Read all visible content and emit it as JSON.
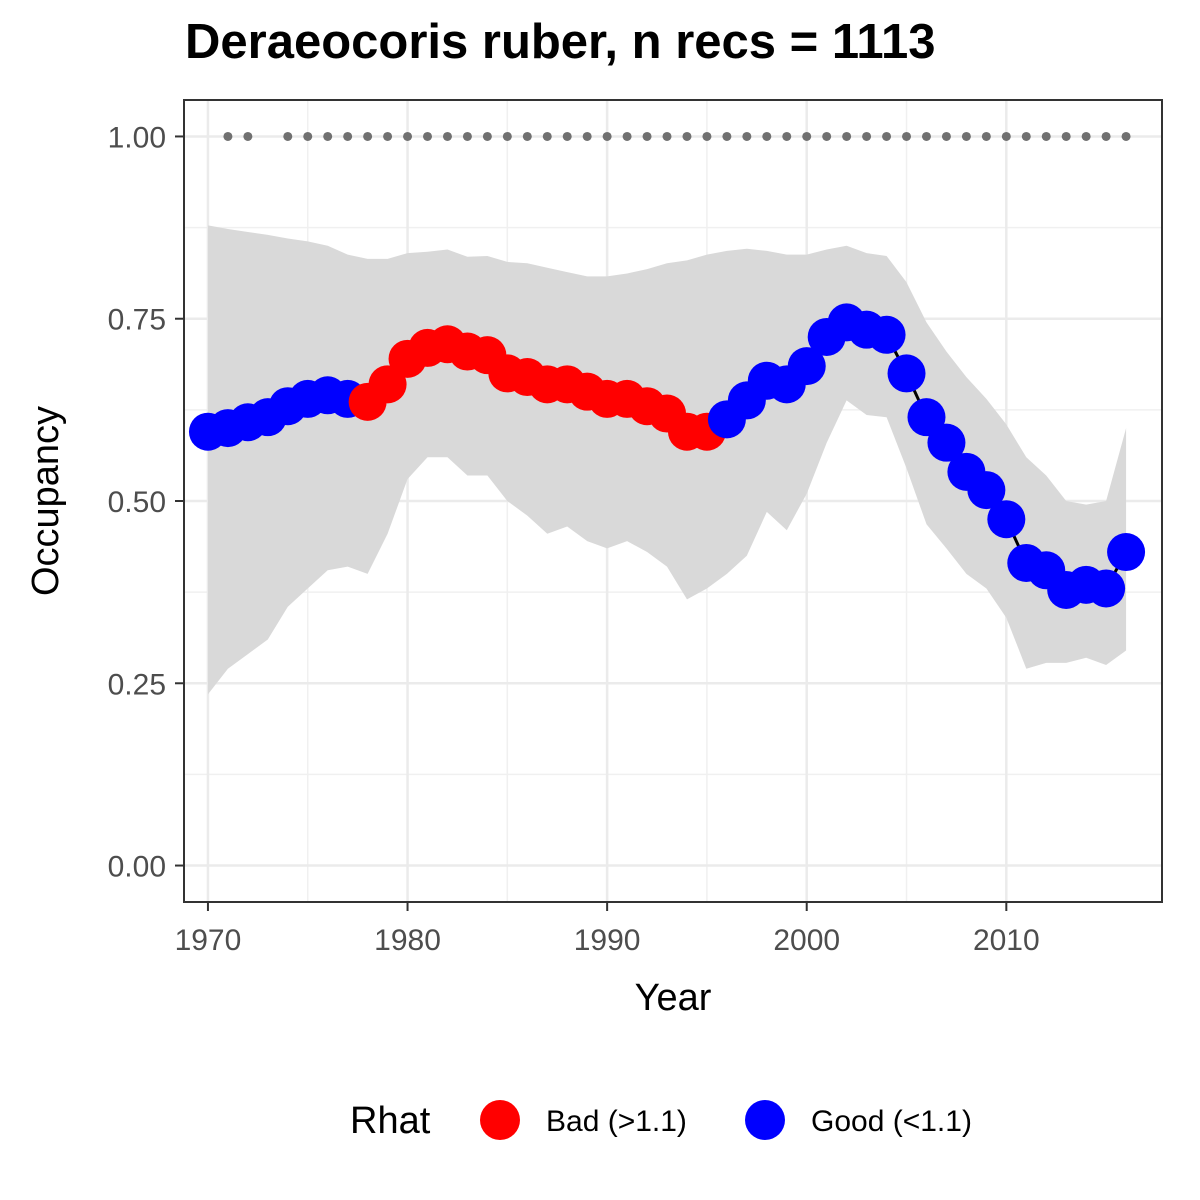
{
  "chart_data": {
    "type": "line",
    "title": "Deraeocoris ruber, n recs = 1113",
    "xlabel": "Year",
    "ylabel": "Occupancy",
    "xlim": [
      1968.8,
      2017.8
    ],
    "ylim": [
      -0.05,
      1.05
    ],
    "x_ticks": [
      "1970",
      "1980",
      "1990",
      "2000",
      "2010"
    ],
    "y_ticks": [
      "0.00",
      "0.25",
      "0.50",
      "0.75",
      "1.00"
    ],
    "grid": true,
    "legend": {
      "title": "Rhat",
      "position": "bottom",
      "entries": [
        {
          "label": "Bad (>1.1)",
          "color": "#ff0000"
        },
        {
          "label": "Good (<1.1)",
          "color": "#0000ff"
        }
      ]
    },
    "colors": {
      "bad": "#ff0000",
      "good": "#0000ff",
      "ribbon": "#d9d9d9",
      "line": "#000000",
      "dots": "#707070"
    },
    "series": [
      {
        "x": [
          1970,
          1971,
          1972,
          1973,
          1974,
          1975,
          1976,
          1977,
          1978,
          1979,
          1980,
          1981,
          1982,
          1983,
          1984,
          1985,
          1986,
          1987,
          1988,
          1989,
          1990,
          1991,
          1992,
          1993,
          1994,
          1995,
          1996,
          1997,
          1998,
          1999,
          2000,
          2001,
          2002,
          2003,
          2004,
          2005,
          2006,
          2007,
          2008,
          2009,
          2010,
          2011,
          2012,
          2013,
          2014,
          2015,
          2016
        ],
        "y": [
          0.595,
          0.6,
          0.608,
          0.615,
          0.63,
          0.64,
          0.645,
          0.64,
          0.636,
          0.66,
          0.695,
          0.71,
          0.715,
          0.705,
          0.7,
          0.675,
          0.67,
          0.66,
          0.66,
          0.65,
          0.64,
          0.64,
          0.63,
          0.62,
          0.595,
          0.595,
          0.612,
          0.638,
          0.665,
          0.66,
          0.685,
          0.725,
          0.745,
          0.735,
          0.728,
          0.675,
          0.615,
          0.58,
          0.54,
          0.515,
          0.475,
          0.415,
          0.405,
          0.378,
          0.385,
          0.38,
          0.43
        ],
        "rhat": [
          "Good",
          "Good",
          "Good",
          "Good",
          "Good",
          "Good",
          "Good",
          "Good",
          "Bad",
          "Bad",
          "Bad",
          "Bad",
          "Bad",
          "Bad",
          "Bad",
          "Bad",
          "Bad",
          "Bad",
          "Bad",
          "Bad",
          "Bad",
          "Bad",
          "Bad",
          "Bad",
          "Bad",
          "Bad",
          "Good",
          "Good",
          "Good",
          "Good",
          "Good",
          "Good",
          "Good",
          "Good",
          "Good",
          "Good",
          "Good",
          "Good",
          "Good",
          "Good",
          "Good",
          "Good",
          "Good",
          "Good",
          "Good",
          "Good",
          "Good"
        ],
        "lower": [
          0.235,
          0.27,
          0.29,
          0.31,
          0.355,
          0.38,
          0.405,
          0.41,
          0.4,
          0.455,
          0.53,
          0.56,
          0.56,
          0.535,
          0.535,
          0.5,
          0.48,
          0.455,
          0.465,
          0.445,
          0.435,
          0.445,
          0.43,
          0.41,
          0.365,
          0.38,
          0.4,
          0.425,
          0.485,
          0.46,
          0.51,
          0.58,
          0.638,
          0.618,
          0.615,
          0.545,
          0.468,
          0.435,
          0.4,
          0.38,
          0.34,
          0.27,
          0.278,
          0.278,
          0.285,
          0.275,
          0.295
        ],
        "upper": [
          0.878,
          0.873,
          0.869,
          0.865,
          0.86,
          0.856,
          0.85,
          0.838,
          0.832,
          0.832,
          0.84,
          0.842,
          0.845,
          0.835,
          0.836,
          0.828,
          0.826,
          0.82,
          0.814,
          0.808,
          0.808,
          0.812,
          0.818,
          0.826,
          0.83,
          0.838,
          0.843,
          0.846,
          0.843,
          0.838,
          0.838,
          0.845,
          0.85,
          0.84,
          0.836,
          0.8,
          0.745,
          0.705,
          0.67,
          0.64,
          0.605,
          0.56,
          0.535,
          0.5,
          0.495,
          0.5,
          0.6
        ]
      }
    ],
    "record_years": [
      1971,
      1972,
      1974,
      1975,
      1976,
      1977,
      1978,
      1979,
      1980,
      1981,
      1982,
      1983,
      1984,
      1985,
      1986,
      1987,
      1988,
      1989,
      1990,
      1991,
      1992,
      1993,
      1994,
      1995,
      1996,
      1997,
      1998,
      1999,
      2000,
      2001,
      2002,
      2003,
      2004,
      2005,
      2006,
      2007,
      2008,
      2009,
      2010,
      2011,
      2012,
      2013,
      2014,
      2015,
      2016
    ]
  }
}
